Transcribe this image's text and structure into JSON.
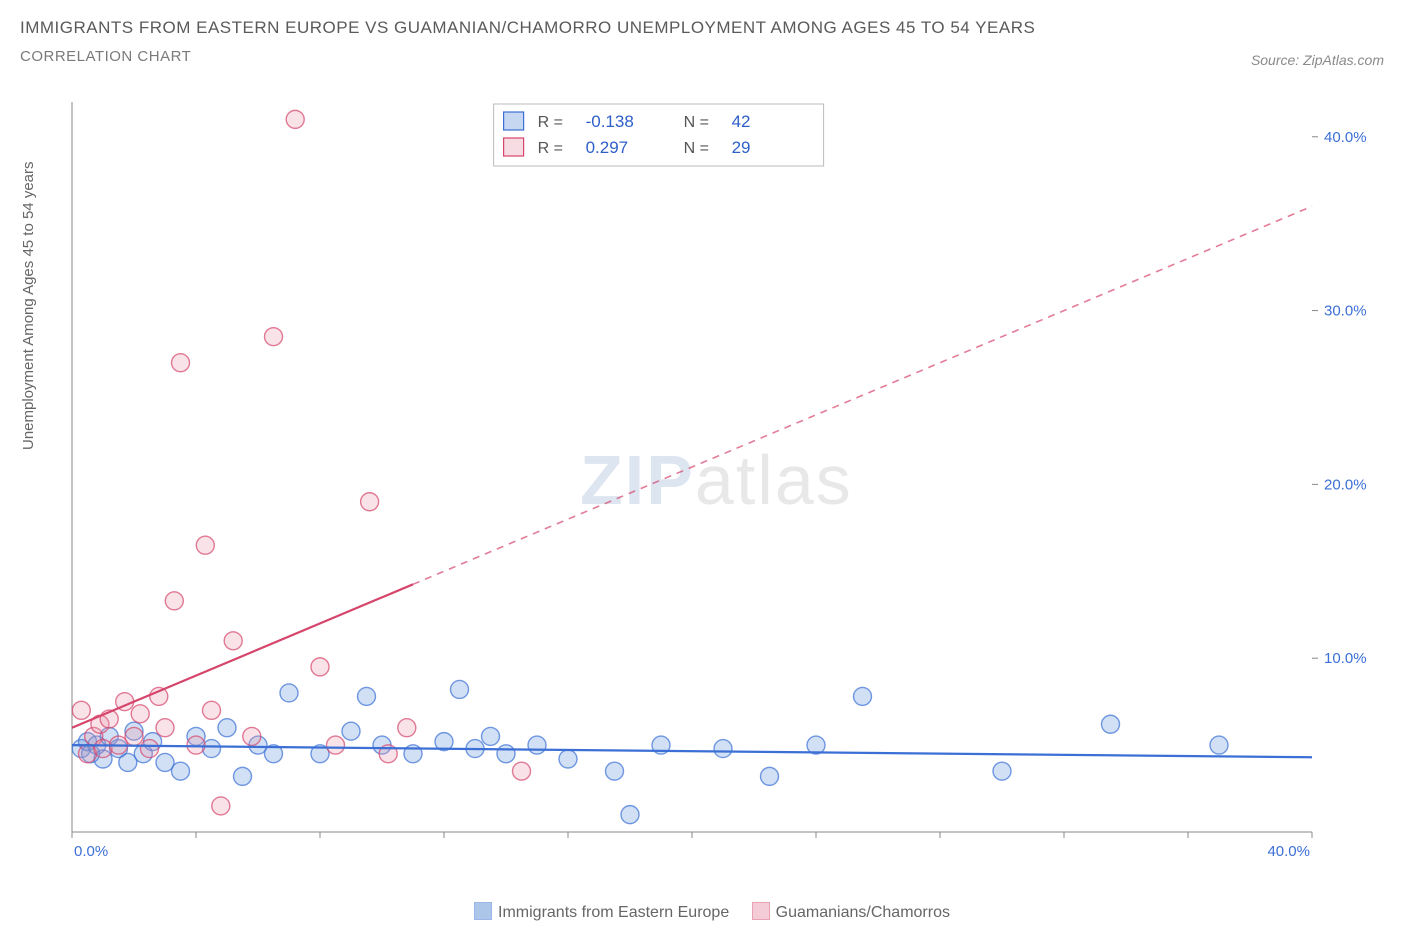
{
  "title": "IMMIGRANTS FROM EASTERN EUROPE VS GUAMANIAN/CHAMORRO UNEMPLOYMENT AMONG AGES 45 TO 54 YEARS",
  "subtitle": "CORRELATION CHART",
  "source": "Source: ZipAtlas.com",
  "ylabel": "Unemployment Among Ages 45 to 54 years",
  "watermark_a": "ZIP",
  "watermark_b": "atlas",
  "chart": {
    "type": "scatter",
    "xlim": [
      0,
      40
    ],
    "ylim": [
      0,
      42
    ],
    "x_ticks": [
      0,
      40
    ],
    "x_tick_labels": [
      "0.0%",
      "40.0%"
    ],
    "y_ticks": [
      10,
      20,
      30,
      40
    ],
    "y_tick_labels": [
      "10.0%",
      "20.0%",
      "30.0%",
      "40.0%"
    ],
    "background_color": "#ffffff",
    "axis_color": "#888888",
    "tick_color": "#888888",
    "ytick_label_color": "#3b6fd6",
    "xtick_label_color": "#3b6fd6",
    "marker_radius": 9,
    "marker_fill_opacity": 0.28,
    "marker_stroke_width": 1.4,
    "series": [
      {
        "name": "Immigrants from Eastern Europe",
        "color": "#5b8fd6",
        "stroke": "#3b6fd6",
        "R": "-0.138",
        "N": "42",
        "trend": {
          "x1": 0,
          "y1": 5.0,
          "x2": 40,
          "y2": 4.3,
          "solid_until": 40
        },
        "points": [
          [
            0.3,
            4.8
          ],
          [
            0.5,
            5.2
          ],
          [
            0.6,
            4.5
          ],
          [
            0.8,
            5.0
          ],
          [
            1.0,
            4.2
          ],
          [
            1.2,
            5.5
          ],
          [
            1.5,
            4.8
          ],
          [
            1.8,
            4.0
          ],
          [
            2.0,
            5.8
          ],
          [
            2.3,
            4.5
          ],
          [
            2.6,
            5.2
          ],
          [
            3.0,
            4.0
          ],
          [
            3.5,
            3.5
          ],
          [
            4.0,
            5.5
          ],
          [
            4.5,
            4.8
          ],
          [
            5.0,
            6.0
          ],
          [
            5.5,
            3.2
          ],
          [
            6.0,
            5.0
          ],
          [
            6.5,
            4.5
          ],
          [
            7.0,
            8.0
          ],
          [
            8.0,
            4.5
          ],
          [
            9.0,
            5.8
          ],
          [
            9.5,
            7.8
          ],
          [
            10.0,
            5.0
          ],
          [
            11.0,
            4.5
          ],
          [
            12.0,
            5.2
          ],
          [
            12.5,
            8.2
          ],
          [
            13.0,
            4.8
          ],
          [
            13.5,
            5.5
          ],
          [
            14.0,
            4.5
          ],
          [
            15.0,
            5.0
          ],
          [
            16.0,
            4.2
          ],
          [
            17.5,
            3.5
          ],
          [
            18.0,
            1.0
          ],
          [
            19.0,
            5.0
          ],
          [
            21.0,
            4.8
          ],
          [
            22.5,
            3.2
          ],
          [
            24.0,
            5.0
          ],
          [
            25.5,
            7.8
          ],
          [
            30.0,
            3.5
          ],
          [
            33.5,
            6.2
          ],
          [
            37.0,
            5.0
          ]
        ]
      },
      {
        "name": "Guamanians/Chamorros",
        "color": "#e89ab0",
        "stroke": "#d6456b",
        "R": "0.297",
        "N": "29",
        "trend": {
          "x1": 0,
          "y1": 6.0,
          "x2": 40,
          "y2": 36.0,
          "solid_until": 11
        },
        "points": [
          [
            0.3,
            7.0
          ],
          [
            0.5,
            4.5
          ],
          [
            0.7,
            5.5
          ],
          [
            0.9,
            6.2
          ],
          [
            1.0,
            4.8
          ],
          [
            1.2,
            6.5
          ],
          [
            1.5,
            5.0
          ],
          [
            1.7,
            7.5
          ],
          [
            2.0,
            5.5
          ],
          [
            2.2,
            6.8
          ],
          [
            2.5,
            4.8
          ],
          [
            2.8,
            7.8
          ],
          [
            3.0,
            6.0
          ],
          [
            3.3,
            13.3
          ],
          [
            3.5,
            27.0
          ],
          [
            4.0,
            5.0
          ],
          [
            4.3,
            16.5
          ],
          [
            4.5,
            7.0
          ],
          [
            4.8,
            1.5
          ],
          [
            5.2,
            11.0
          ],
          [
            5.8,
            5.5
          ],
          [
            6.5,
            28.5
          ],
          [
            7.2,
            41.0
          ],
          [
            8.0,
            9.5
          ],
          [
            8.5,
            5.0
          ],
          [
            9.6,
            19.0
          ],
          [
            10.2,
            4.5
          ],
          [
            10.8,
            6.0
          ],
          [
            14.5,
            3.5
          ]
        ]
      }
    ],
    "legend_box": {
      "border_color": "#bbbbbb",
      "bg": "#ffffff",
      "label_R": "R =",
      "label_N": "N =",
      "value_color": "#2e5fc9"
    },
    "bottom_legend": {
      "series1_label": "Immigrants from Eastern Europe",
      "series2_label": "Guamanians/Chamorros"
    }
  }
}
